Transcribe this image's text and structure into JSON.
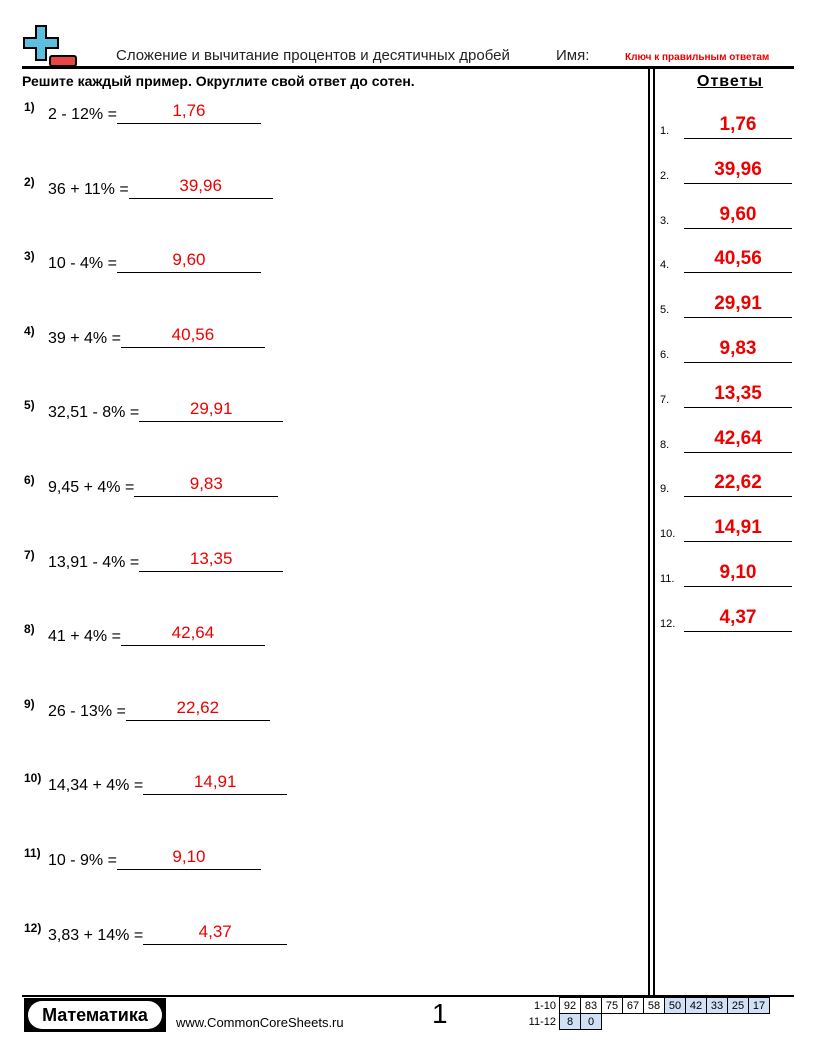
{
  "header": {
    "title": "Сложение и вычитание процентов и десятичных дробей",
    "name_label": "Имя:",
    "key_label": "Ключ к правильным ответам"
  },
  "instructions": "Решите каждый пример. Округлите свой ответ до сотен.",
  "answers_heading": "Ответы",
  "problems": [
    {
      "num": "1)",
      "text": "2 - 12% =",
      "answer": "1,76"
    },
    {
      "num": "2)",
      "text": "36 + 11% =",
      "answer": "39,96"
    },
    {
      "num": "3)",
      "text": "10 - 4% =",
      "answer": "9,60"
    },
    {
      "num": "4)",
      "text": "39 + 4% =",
      "answer": "40,56"
    },
    {
      "num": "5)",
      "text": "32,51 - 8% =",
      "answer": "29,91"
    },
    {
      "num": "6)",
      "text": "9,45 + 4% =",
      "answer": "9,83"
    },
    {
      "num": "7)",
      "text": "13,91 - 4% =",
      "answer": "13,35"
    },
    {
      "num": "8)",
      "text": "41 + 4% =",
      "answer": "42,64"
    },
    {
      "num": "9)",
      "text": "26 - 13% =",
      "answer": "22,62"
    },
    {
      "num": "10)",
      "text": "14,34 + 4% =",
      "answer": "14,91"
    },
    {
      "num": "11)",
      "text": "10 - 9% =",
      "answer": "9,10"
    },
    {
      "num": "12)",
      "text": "3,83 + 14% =",
      "answer": "4,37"
    }
  ],
  "answer_key": [
    {
      "num": "1.",
      "value": "1,76"
    },
    {
      "num": "2.",
      "value": "39,96"
    },
    {
      "num": "3.",
      "value": "9,60"
    },
    {
      "num": "4.",
      "value": "40,56"
    },
    {
      "num": "5.",
      "value": "29,91"
    },
    {
      "num": "6.",
      "value": "9,83"
    },
    {
      "num": "7.",
      "value": "13,35"
    },
    {
      "num": "8.",
      "value": "42,64"
    },
    {
      "num": "9.",
      "value": "22,62"
    },
    {
      "num": "10.",
      "value": "14,91"
    },
    {
      "num": "11.",
      "value": "9,10"
    },
    {
      "num": "12.",
      "value": "4,37"
    }
  ],
  "footer": {
    "brand": "Математика",
    "site": "www.CommonCoreSheets.ru",
    "page": "1",
    "score_rows": [
      {
        "label": "1-10",
        "cells": [
          "92",
          "83",
          "75",
          "67",
          "58",
          "50",
          "42",
          "33",
          "25",
          "17"
        ]
      },
      {
        "label": "11-12",
        "cells": [
          "8",
          "0"
        ]
      }
    ]
  },
  "colors": {
    "answer": "#ee0000",
    "score_highlight": "#cfe0f7",
    "logo_plus": "#5bbfe0",
    "logo_minus": "#e84545"
  }
}
